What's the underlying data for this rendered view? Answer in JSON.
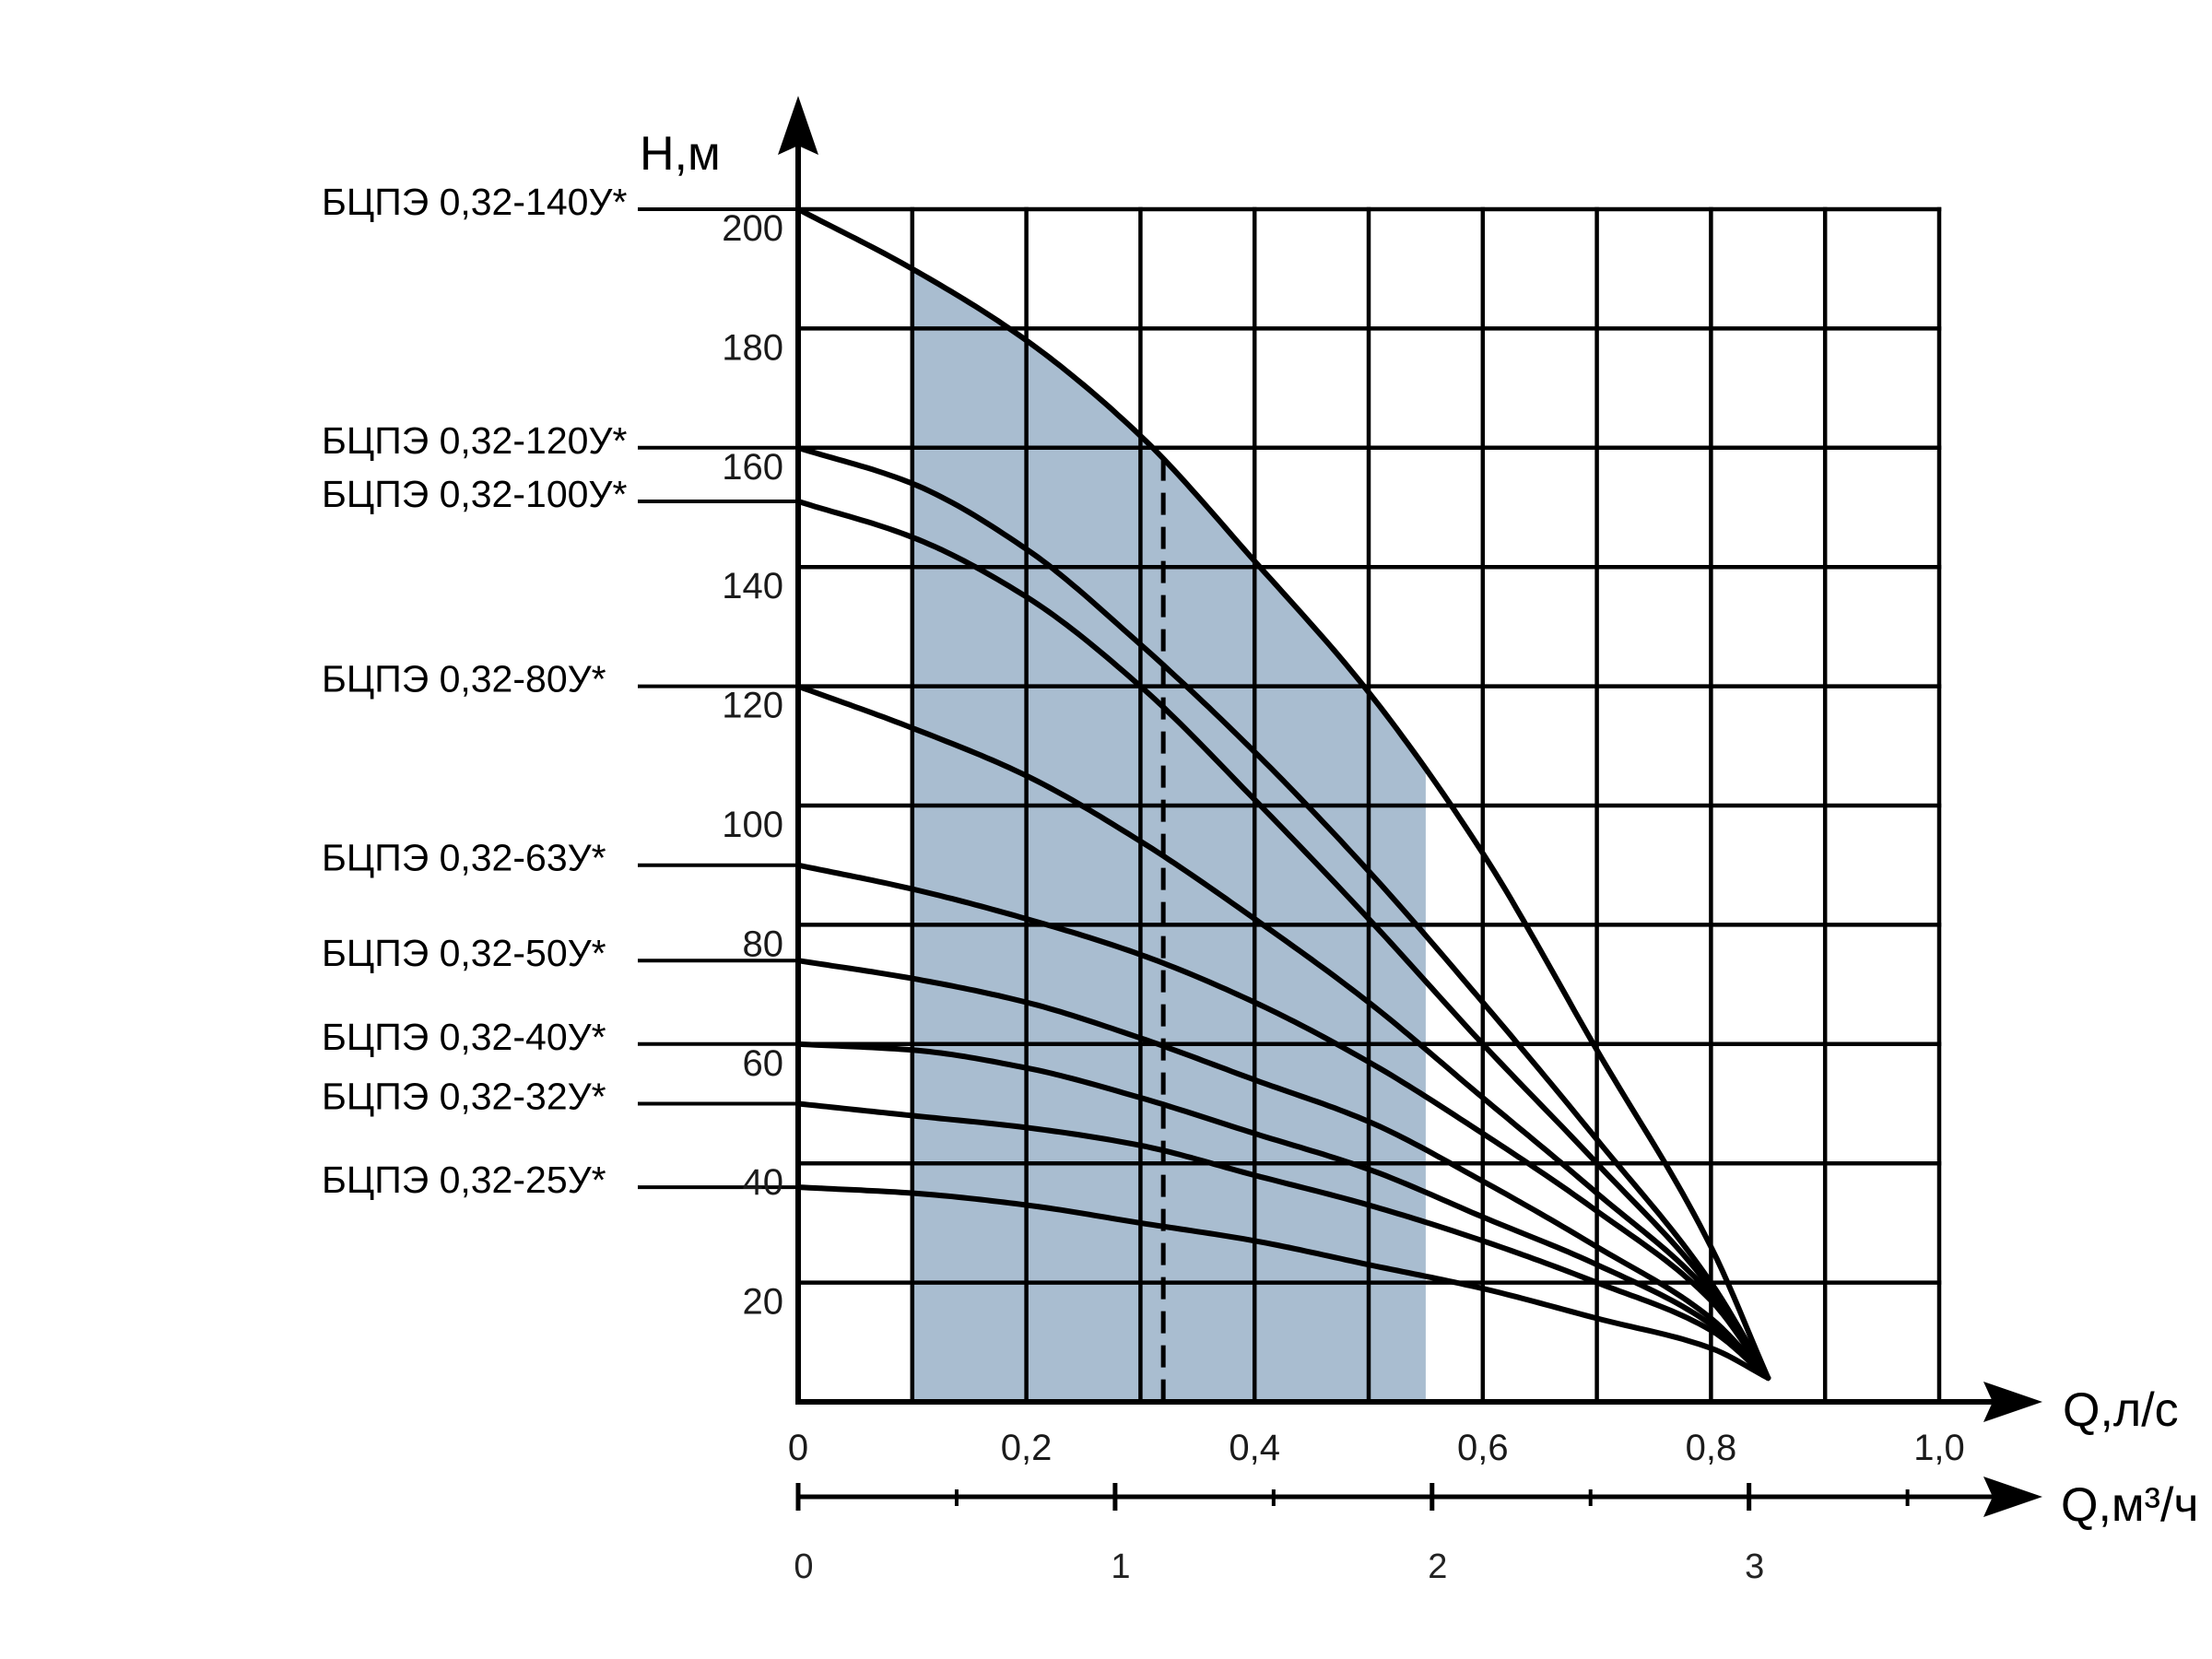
{
  "chart_data": {
    "type": "line",
    "ylabel": "H,м",
    "xlabel": "Q,л/с",
    "x2label": "Q,м³/ч",
    "xlim": [
      0,
      1.0
    ],
    "ylim": [
      0,
      200
    ],
    "grid": true,
    "x_grid_step": 0.1,
    "y_grid_step": 20,
    "x_ticks": [
      0,
      0.2,
      0.4,
      0.6,
      0.8,
      1.0
    ],
    "x_tick_labels": [
      "0",
      "0,2",
      "0,4",
      "0,6",
      "0,8",
      "1,0"
    ],
    "y_ticks": [
      200,
      180,
      160,
      140,
      120,
      100,
      80,
      60,
      40,
      20
    ],
    "y_tick_labels": [
      "200",
      "180",
      "160",
      "140",
      "120",
      "100",
      "80",
      "60",
      "40",
      "20"
    ],
    "x2_per_x": 3.6,
    "x2_ticks": [
      0,
      1,
      2,
      3
    ],
    "x2_tick_labels": [
      "0",
      "1",
      "2",
      "3"
    ],
    "x2_minor_ticks": [
      0.5,
      1.5,
      2.5,
      3.5
    ],
    "x": [
      0,
      0.1,
      0.2,
      0.3,
      0.4,
      0.5,
      0.6,
      0.7,
      0.8,
      0.85
    ],
    "series": [
      {
        "name": "БЦПЭ 0,32-140У*",
        "values": [
          200,
          190,
          178,
          162,
          141,
          119,
          92,
          59,
          26,
          4
        ]
      },
      {
        "name": "БЦПЭ 0,32-120У*",
        "values": [
          160,
          154,
          143,
          127,
          109,
          89,
          67,
          44,
          20,
          4
        ]
      },
      {
        "name": "БЦПЭ 0,32-100У*",
        "values": [
          151,
          145,
          135,
          120,
          101,
          81,
          60,
          40,
          19,
          4
        ]
      },
      {
        "name": "БЦПЭ 0,32-80У*",
        "values": [
          120,
          113,
          105,
          94,
          81,
          67,
          51,
          35,
          18,
          4
        ]
      },
      {
        "name": "БЦПЭ 0,32-63У*",
        "values": [
          90,
          86,
          81,
          75,
          67,
          57,
          45,
          32,
          17,
          4
        ]
      },
      {
        "name": "БЦПЭ 0,32-50У*",
        "values": [
          74,
          71,
          67,
          61,
          54,
          47,
          37,
          26,
          14,
          4
        ]
      },
      {
        "name": "БЦПЭ 0,32-40У*",
        "values": [
          60,
          59,
          56,
          51,
          45,
          39,
          31,
          23,
          13,
          4
        ]
      },
      {
        "name": "БЦПЭ 0,32-32У*",
        "values": [
          50,
          48,
          46,
          43,
          38,
          33,
          27,
          20,
          12,
          4
        ]
      },
      {
        "name": "БЦПЭ 0,32-25У*",
        "values": [
          36,
          35,
          33,
          30,
          27,
          23,
          19,
          14,
          9,
          4
        ]
      }
    ],
    "operating_range": {
      "q_min": 0.1,
      "q_max": 0.55,
      "upper_series": 0
    },
    "nominal_flow_q": 0.32,
    "colors": {
      "curve": "#000000",
      "grid": "#000000",
      "range_fill": "#a9bdd0"
    }
  }
}
